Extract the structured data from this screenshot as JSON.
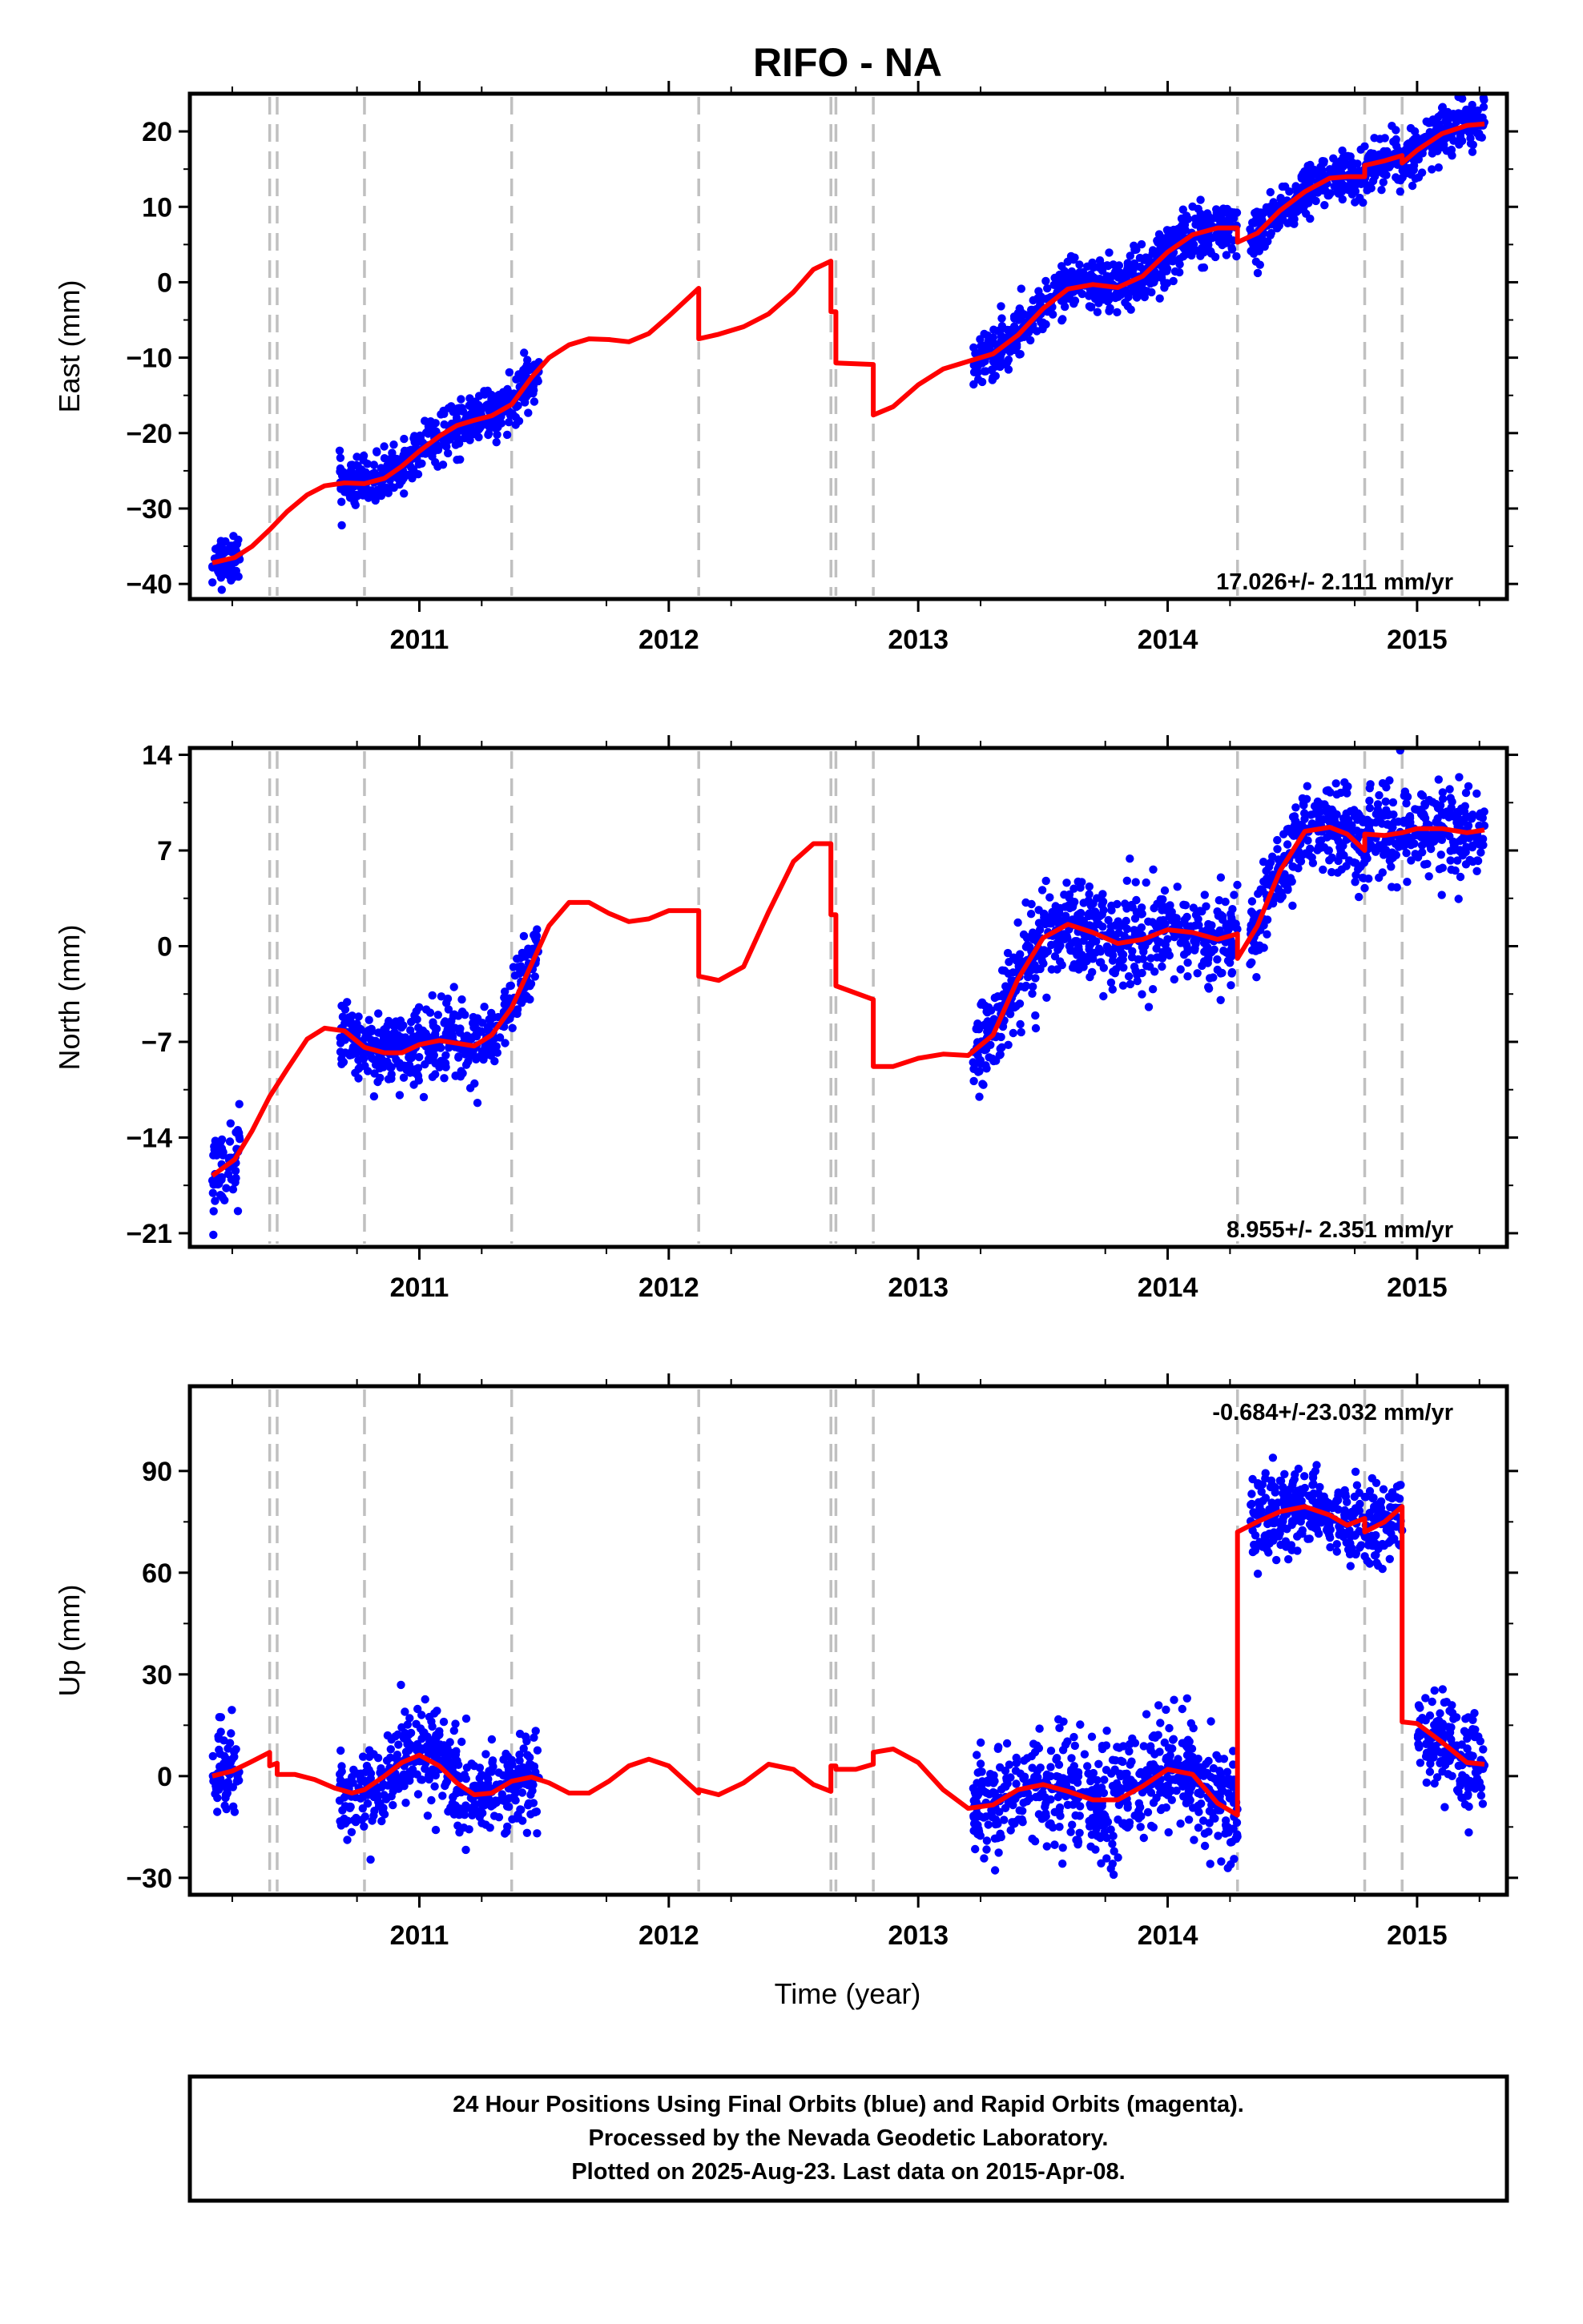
{
  "chart_data": {
    "type": "scatter",
    "title": "RIFO - NA",
    "xlabel": "Time (year)",
    "xlim": [
      2010.08,
      2015.36
    ],
    "x_ticks": [
      "2011",
      "2012",
      "2013",
      "2014",
      "2015"
    ],
    "x_tick_values": [
      2011,
      2012,
      2013,
      2014,
      2015
    ],
    "event_lines": [
      2010.4,
      2010.43,
      2010.78,
      2011.37,
      2012.12,
      2012.65,
      2012.67,
      2012.82,
      2014.28,
      2014.79,
      2014.94
    ],
    "colors": {
      "observations": "#0000ff",
      "model": "#ff0000",
      "event_lines": "#c0c0c0"
    },
    "grid": false,
    "panels": [
      {
        "ylabel": "East (mm)",
        "ylim": [
          -42,
          25
        ],
        "y_ticks": [
          "20",
          "10",
          "0",
          "−10",
          "−20",
          "−30",
          "−40"
        ],
        "y_tick_values": [
          20,
          10,
          0,
          -10,
          -20,
          -30,
          -40
        ],
        "rate_text": "17.026+/- 2.111 mm/yr",
        "rate_position": "bottom-right",
        "data_segments": [
          {
            "start": 2010.17,
            "end": 2010.28,
            "noise": 1.6
          },
          {
            "start": 2010.68,
            "end": 2011.48,
            "noise": 1.6
          },
          {
            "start": 2013.22,
            "end": 2014.28,
            "noise": 1.8
          },
          {
            "start": 2014.33,
            "end": 2015.27,
            "noise": 1.6
          }
        ],
        "model_line": [
          [
            2010.17,
            -37.2
          ],
          [
            2010.26,
            -36.5
          ],
          [
            2010.33,
            -35.0
          ],
          [
            2010.4,
            -32.8
          ],
          [
            2010.47,
            -30.4
          ],
          [
            2010.55,
            -28.2
          ],
          [
            2010.62,
            -27.0
          ],
          [
            2010.7,
            -26.6
          ],
          [
            2010.78,
            -26.7
          ],
          [
            2010.86,
            -26.0
          ],
          [
            2010.93,
            -24.4
          ],
          [
            2011.0,
            -22.4
          ],
          [
            2011.08,
            -20.4
          ],
          [
            2011.15,
            -19.0
          ],
          [
            2011.22,
            -18.3
          ],
          [
            2011.29,
            -17.7
          ],
          [
            2011.37,
            -16.2
          ],
          [
            2011.45,
            -12.6
          ],
          [
            2011.52,
            -10.0
          ],
          [
            2011.6,
            -8.3
          ],
          [
            2011.68,
            -7.5
          ],
          [
            2011.76,
            -7.6
          ],
          [
            2011.84,
            -7.9
          ],
          [
            2011.92,
            -6.8
          ],
          [
            2012.0,
            -4.5
          ],
          [
            2012.12,
            -0.8
          ],
          [
            2012.12,
            -7.5
          ],
          [
            2012.2,
            -6.9
          ],
          [
            2012.3,
            -5.9
          ],
          [
            2012.4,
            -4.2
          ],
          [
            2012.5,
            -1.3
          ],
          [
            2012.58,
            1.7
          ],
          [
            2012.65,
            2.8
          ],
          [
            2012.65,
            -3.9
          ],
          [
            2012.67,
            -3.9
          ],
          [
            2012.67,
            -10.7
          ],
          [
            2012.82,
            -10.9
          ],
          [
            2012.82,
            -17.6
          ],
          [
            2012.9,
            -16.5
          ],
          [
            2013.0,
            -13.6
          ],
          [
            2013.1,
            -11.5
          ],
          [
            2013.2,
            -10.5
          ],
          [
            2013.3,
            -9.5
          ],
          [
            2013.4,
            -7.0
          ],
          [
            2013.5,
            -3.5
          ],
          [
            2013.6,
            -0.9
          ],
          [
            2013.7,
            -0.3
          ],
          [
            2013.8,
            -0.7
          ],
          [
            2013.9,
            0.8
          ],
          [
            2014.0,
            4.0
          ],
          [
            2014.1,
            6.3
          ],
          [
            2014.2,
            7.2
          ],
          [
            2014.28,
            7.2
          ],
          [
            2014.28,
            5.3
          ],
          [
            2014.36,
            6.5
          ],
          [
            2014.45,
            9.5
          ],
          [
            2014.55,
            12.0
          ],
          [
            2014.65,
            13.8
          ],
          [
            2014.72,
            14.0
          ],
          [
            2014.79,
            14.0
          ],
          [
            2014.79,
            15.5
          ],
          [
            2014.87,
            16.1
          ],
          [
            2014.94,
            16.8
          ],
          [
            2014.94,
            15.8
          ],
          [
            2015.0,
            17.5
          ],
          [
            2015.1,
            19.7
          ],
          [
            2015.2,
            20.8
          ],
          [
            2015.27,
            21.0
          ]
        ]
      },
      {
        "ylabel": "North (mm)",
        "ylim": [
          -22,
          14.5
        ],
        "y_ticks": [
          "14",
          "7",
          "0",
          "−7",
          "−14",
          "−21"
        ],
        "y_tick_values": [
          14,
          7,
          0,
          -7,
          -14,
          -21
        ],
        "rate_text": "8.955+/- 2.351 mm/yr",
        "rate_position": "bottom-right",
        "data_segments": [
          {
            "start": 2010.17,
            "end": 2010.28,
            "noise": 1.8
          },
          {
            "start": 2010.68,
            "end": 2011.48,
            "noise": 1.3
          },
          {
            "start": 2013.22,
            "end": 2014.28,
            "noise": 1.7
          },
          {
            "start": 2014.33,
            "end": 2015.27,
            "noise": 1.6
          }
        ],
        "model_line": [
          [
            2010.17,
            -16.8
          ],
          [
            2010.26,
            -15.6
          ],
          [
            2010.33,
            -13.5
          ],
          [
            2010.4,
            -11.0
          ],
          [
            2010.47,
            -9.0
          ],
          [
            2010.55,
            -6.8
          ],
          [
            2010.62,
            -6.0
          ],
          [
            2010.7,
            -6.2
          ],
          [
            2010.78,
            -7.4
          ],
          [
            2010.86,
            -7.8
          ],
          [
            2010.93,
            -7.8
          ],
          [
            2011.0,
            -7.2
          ],
          [
            2011.08,
            -6.9
          ],
          [
            2011.15,
            -7.1
          ],
          [
            2011.22,
            -7.3
          ],
          [
            2011.29,
            -6.5
          ],
          [
            2011.37,
            -4.5
          ],
          [
            2011.45,
            -1.3
          ],
          [
            2011.52,
            1.5
          ],
          [
            2011.6,
            3.2
          ],
          [
            2011.68,
            3.2
          ],
          [
            2011.76,
            2.4
          ],
          [
            2011.84,
            1.8
          ],
          [
            2011.92,
            2.0
          ],
          [
            2012.0,
            2.6
          ],
          [
            2012.12,
            2.6
          ],
          [
            2012.12,
            -2.2
          ],
          [
            2012.2,
            -2.5
          ],
          [
            2012.3,
            -1.5
          ],
          [
            2012.4,
            2.5
          ],
          [
            2012.5,
            6.2
          ],
          [
            2012.58,
            7.5
          ],
          [
            2012.65,
            7.5
          ],
          [
            2012.65,
            2.3
          ],
          [
            2012.67,
            2.3
          ],
          [
            2012.67,
            -2.9
          ],
          [
            2012.82,
            -3.9
          ],
          [
            2012.82,
            -8.8
          ],
          [
            2012.9,
            -8.8
          ],
          [
            2013.0,
            -8.2
          ],
          [
            2013.1,
            -7.9
          ],
          [
            2013.2,
            -8.0
          ],
          [
            2013.3,
            -6.5
          ],
          [
            2013.4,
            -2.4
          ],
          [
            2013.5,
            0.6
          ],
          [
            2013.6,
            1.6
          ],
          [
            2013.7,
            1.0
          ],
          [
            2013.8,
            0.2
          ],
          [
            2013.9,
            0.5
          ],
          [
            2014.0,
            1.2
          ],
          [
            2014.1,
            1.0
          ],
          [
            2014.2,
            0.5
          ],
          [
            2014.28,
            0.9
          ],
          [
            2014.28,
            -0.9
          ],
          [
            2014.36,
            1.5
          ],
          [
            2014.45,
            5.5
          ],
          [
            2014.55,
            8.4
          ],
          [
            2014.65,
            8.7
          ],
          [
            2014.72,
            8.2
          ],
          [
            2014.79,
            7.0
          ],
          [
            2014.79,
            8.2
          ],
          [
            2014.87,
            8.1
          ],
          [
            2014.94,
            8.3
          ],
          [
            2015.0,
            8.6
          ],
          [
            2015.1,
            8.6
          ],
          [
            2015.2,
            8.3
          ],
          [
            2015.27,
            8.5
          ]
        ]
      },
      {
        "ylabel": "Up (mm)",
        "ylim": [
          -35,
          115
        ],
        "y_ticks": [
          "90",
          "60",
          "30",
          "0",
          "−30"
        ],
        "y_tick_values": [
          90,
          60,
          30,
          0,
          -30
        ],
        "rate_text": "-0.684+/-23.032 mm/yr",
        "rate_position": "top-right",
        "data_segments": [
          {
            "start": 2010.17,
            "end": 2010.28,
            "noise": 7
          },
          {
            "start": 2010.68,
            "end": 2011.48,
            "noise": 7
          },
          {
            "start": 2013.22,
            "end": 2014.28,
            "noise": 8
          },
          {
            "start": 2014.33,
            "end": 2014.94,
            "noise": 6
          },
          {
            "start": 2015.0,
            "end": 2015.27,
            "noise": 7
          }
        ],
        "model_line": [
          [
            2010.17,
            0.0
          ],
          [
            2010.25,
            1.5
          ],
          [
            2010.32,
            4.0
          ],
          [
            2010.4,
            7.0
          ],
          [
            2010.4,
            3.0
          ],
          [
            2010.43,
            3.8
          ],
          [
            2010.43,
            0.5
          ],
          [
            2010.5,
            0.5
          ],
          [
            2010.58,
            -1.0
          ],
          [
            2010.66,
            -3.5
          ],
          [
            2010.73,
            -5.0
          ],
          [
            2010.78,
            -4.0
          ],
          [
            2010.86,
            0.0
          ],
          [
            2010.93,
            4.0
          ],
          [
            2011.0,
            6.2
          ],
          [
            2011.08,
            3.0
          ],
          [
            2011.15,
            -2.0
          ],
          [
            2011.22,
            -5.5
          ],
          [
            2011.29,
            -5.0
          ],
          [
            2011.37,
            -1.5
          ],
          [
            2011.45,
            -0.3
          ],
          [
            2011.52,
            -2.0
          ],
          [
            2011.6,
            -5.0
          ],
          [
            2011.68,
            -5.0
          ],
          [
            2011.76,
            -1.5
          ],
          [
            2011.84,
            3.0
          ],
          [
            2011.92,
            5.0
          ],
          [
            2012.0,
            3.0
          ],
          [
            2012.06,
            -1.0
          ],
          [
            2012.12,
            -5.0
          ],
          [
            2012.12,
            -4.0
          ],
          [
            2012.2,
            -5.5
          ],
          [
            2012.3,
            -2.0
          ],
          [
            2012.4,
            3.5
          ],
          [
            2012.5,
            2.0
          ],
          [
            2012.58,
            -2.5
          ],
          [
            2012.65,
            -4.5
          ],
          [
            2012.65,
            3.0
          ],
          [
            2012.67,
            3.0
          ],
          [
            2012.67,
            2.0
          ],
          [
            2012.75,
            2.0
          ],
          [
            2012.82,
            3.5
          ],
          [
            2012.82,
            7.0
          ],
          [
            2012.9,
            8.0
          ],
          [
            2013.0,
            4.0
          ],
          [
            2013.1,
            -4.0
          ],
          [
            2013.2,
            -9.5
          ],
          [
            2013.3,
            -8.5
          ],
          [
            2013.4,
            -4.0
          ],
          [
            2013.5,
            -2.5
          ],
          [
            2013.6,
            -4.5
          ],
          [
            2013.7,
            -7.0
          ],
          [
            2013.8,
            -7.0
          ],
          [
            2013.9,
            -3.0
          ],
          [
            2014.0,
            2.0
          ],
          [
            2014.1,
            0.5
          ],
          [
            2014.2,
            -8.0
          ],
          [
            2014.28,
            -11.5
          ],
          [
            2014.28,
            72.0
          ],
          [
            2014.36,
            75.0
          ],
          [
            2014.45,
            78.0
          ],
          [
            2014.55,
            79.5
          ],
          [
            2014.65,
            77.0
          ],
          [
            2014.72,
            74.0
          ],
          [
            2014.79,
            76.0
          ],
          [
            2014.79,
            72.0
          ],
          [
            2014.87,
            75.0
          ],
          [
            2014.94,
            79.5
          ],
          [
            2014.94,
            16.0
          ],
          [
            2015.0,
            15.5
          ],
          [
            2015.1,
            10.0
          ],
          [
            2015.2,
            4.0
          ],
          [
            2015.27,
            3.5
          ]
        ]
      }
    ]
  },
  "footer": {
    "line1": "24 Hour Positions Using Final Orbits (blue) and Rapid Orbits (magenta).",
    "line2": "Processed by the Nevada Geodetic Laboratory.",
    "line3": "Plotted on 2025-Aug-23. Last data on 2015-Apr-08."
  }
}
